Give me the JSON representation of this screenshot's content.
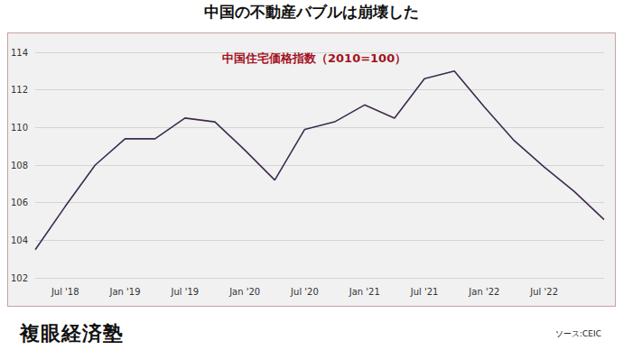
{
  "header": {
    "title": "中国の不動産バブルは崩壊した"
  },
  "chart_data": {
    "type": "line",
    "title": "中国住宅価格指数（2010=100）",
    "categories": [
      null,
      "Jul '18",
      null,
      "Jan '19",
      null,
      "Jul '19",
      null,
      "Jan '20",
      null,
      "Jul '20",
      null,
      "Jan '21",
      null,
      "Jul '21",
      null,
      "Jan '22",
      null,
      "Jul '22",
      null,
      null
    ],
    "values": [
      103.5,
      105.8,
      108.0,
      109.4,
      109.4,
      110.5,
      110.3,
      108.8,
      107.2,
      109.9,
      110.3,
      111.2,
      110.5,
      112.6,
      113.0,
      111.1,
      109.3,
      107.9,
      106.6,
      105.1
    ],
    "color": "#3d2b4f",
    "ylim": [
      102,
      114
    ],
    "yticks": [
      102,
      104,
      106,
      108,
      110,
      112,
      114
    ],
    "grid": true
  },
  "footer": {
    "logo": "複眼経済塾",
    "source": "ソース:CEIC"
  }
}
